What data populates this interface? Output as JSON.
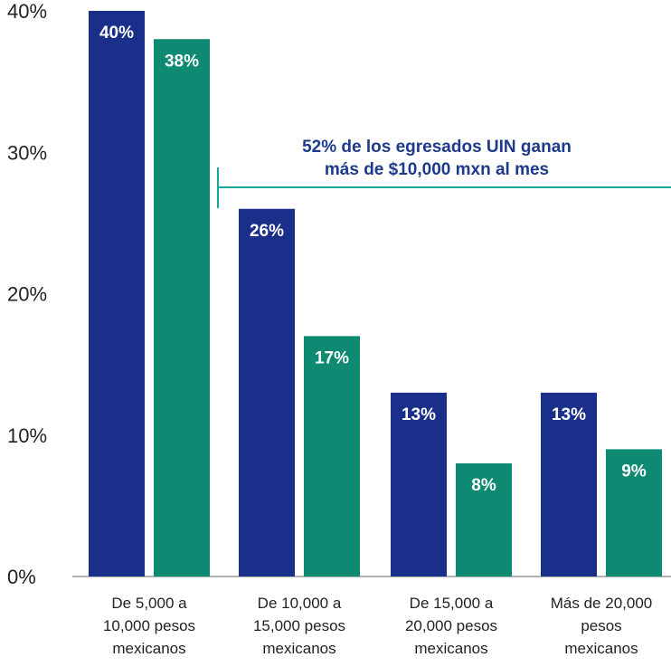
{
  "chart_data": {
    "type": "bar",
    "categories": [
      [
        "De 5,000 a",
        "10,000 pesos",
        "mexicanos"
      ],
      [
        "De 10,000 a",
        "15,000 pesos",
        "mexicanos"
      ],
      [
        "De 15,000 a",
        "20,000 pesos",
        "mexicanos"
      ],
      [
        "Más de 20,000",
        "pesos",
        "mexicanos"
      ]
    ],
    "series": [
      {
        "values": [
          40,
          26,
          13,
          13
        ],
        "labels": [
          "40%",
          "26%",
          "13%",
          "13%"
        ],
        "color": "#1a2f8a"
      },
      {
        "values": [
          38,
          17,
          8,
          9
        ],
        "labels": [
          "38%",
          "17%",
          "8%",
          "9%"
        ],
        "color": "#0f8a72"
      }
    ],
    "yticks": [
      0,
      10,
      20,
      30,
      40
    ],
    "ytick_labels": [
      "0%",
      "10%",
      "20%",
      "30%",
      "40%"
    ],
    "ylim": [
      0,
      40
    ],
    "annotation": {
      "lines": [
        "52% de los egresados UIN ganan",
        "más de $10,000 mxn al mes"
      ],
      "color": "#1e3a8a",
      "bracket_color": "#16a99a"
    },
    "grid": false
  }
}
